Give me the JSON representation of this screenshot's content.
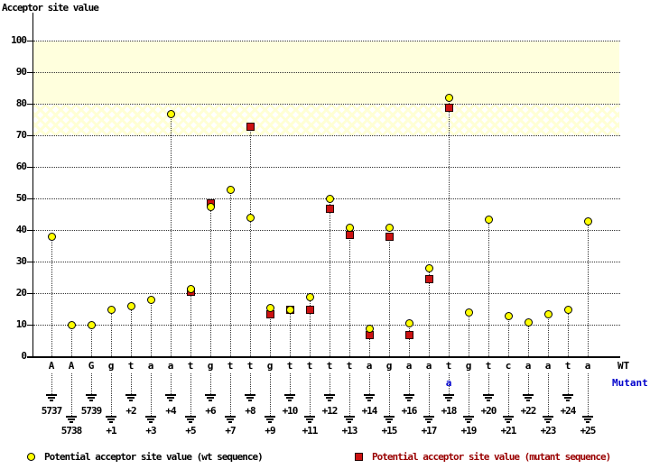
{
  "title": "Acceptor site value",
  "right_labels": {
    "wt": "WT",
    "mutant": "Mutant"
  },
  "legend": {
    "wt": "Potential acceptor site value (wt sequence)",
    "mutant": "Potential acceptor site value (mutant sequence)"
  },
  "colors": {
    "wt_marker": "#ffff00",
    "mutant_marker": "#cc1111",
    "high_band": "#ffffdd",
    "mutant_legend_text": "#990000",
    "mutant_base_text": "#0000cc",
    "grid": "#333333"
  },
  "chart_data": {
    "type": "scatter",
    "title": "Acceptor site value",
    "ylabel": "Acceptor site value",
    "ylim": [
      0,
      100
    ],
    "y_ticks": [
      0,
      10,
      20,
      30,
      40,
      50,
      60,
      70,
      80,
      90,
      100
    ],
    "grid": "dotted horizontal at each tick; dotted vertical drop-line from each point to baseline",
    "high_score_band": [
      80,
      100
    ],
    "hatched_band": [
      70,
      80
    ],
    "positions": [
      "5737",
      "5738",
      "5739",
      "+1",
      "+2",
      "+3",
      "+4",
      "+5",
      "+6",
      "+7",
      "+8",
      "+9",
      "+10",
      "+11",
      "+12",
      "+13",
      "+14",
      "+15",
      "+16",
      "+17",
      "+18",
      "+19",
      "+20",
      "+21",
      "+22",
      "+23",
      "+24",
      "+25"
    ],
    "wt_sequence": [
      "A",
      "A",
      "G",
      "g",
      "t",
      "a",
      "a",
      "t",
      "g",
      "t",
      "t",
      "g",
      "t",
      "t",
      "t",
      "t",
      "a",
      "g",
      "a",
      "a",
      "t",
      "g",
      "t",
      "c",
      "a",
      "a",
      "t",
      "a"
    ],
    "mutation": {
      "position": "+18",
      "index": 20,
      "wt_base": "t",
      "mutant_base": "a"
    },
    "legend_position": "bottom",
    "series": [
      {
        "name": "Potential acceptor site value (wt sequence)",
        "marker": "circle",
        "color": "#ffff00",
        "values": [
          38,
          10,
          10,
          15,
          16,
          18,
          77,
          21.5,
          47.5,
          53,
          44,
          15.5,
          15,
          19,
          50,
          41,
          9,
          41,
          10.5,
          28,
          82,
          14,
          43.5,
          13,
          11,
          13.5,
          15,
          43
        ]
      },
      {
        "name": "Potential acceptor site value (mutant sequence)",
        "marker": "square",
        "color": "#cc1111",
        "values": [
          null,
          null,
          null,
          null,
          null,
          null,
          null,
          20.5,
          48.5,
          null,
          73,
          13.5,
          15,
          15,
          47,
          38.5,
          7,
          38,
          7,
          24.5,
          79,
          null,
          null,
          null,
          null,
          null,
          null,
          null
        ]
      }
    ]
  }
}
